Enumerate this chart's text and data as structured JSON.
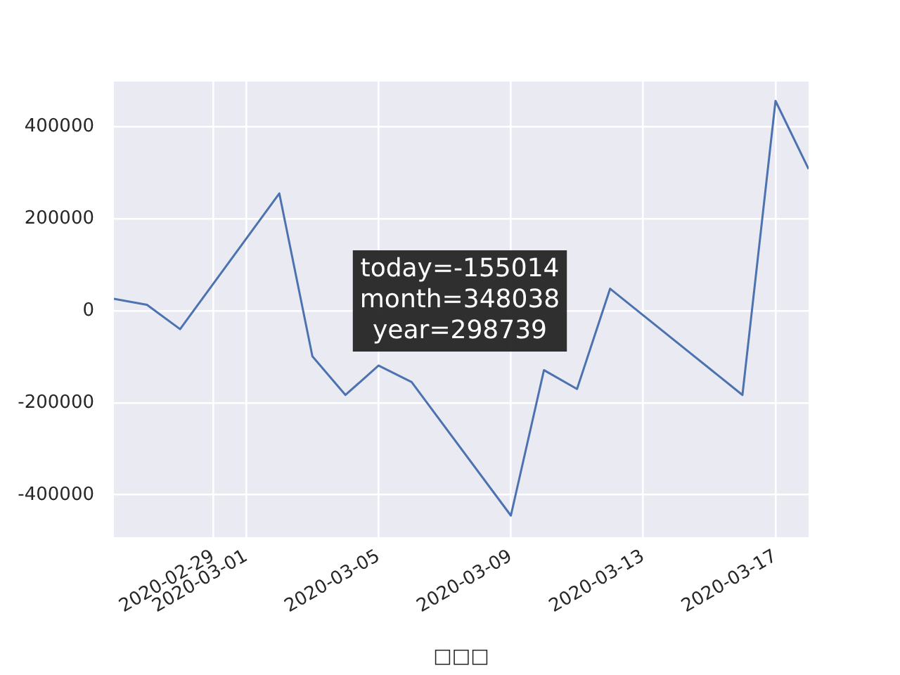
{
  "chart_data": {
    "type": "line",
    "xlabel": "□□□",
    "x": [
      "2020-02-26",
      "2020-02-27",
      "2020-02-28",
      "2020-03-02",
      "2020-03-03",
      "2020-03-04",
      "2020-03-05",
      "2020-03-06",
      "2020-03-09",
      "2020-03-10",
      "2020-03-11",
      "2020-03-12",
      "2020-03-16",
      "2020-03-17",
      "2020-03-18"
    ],
    "series": [
      {
        "color": "#4c72b0",
        "values": [
          26000,
          13000,
          -40000,
          255000,
          -99000,
          -183000,
          -119000,
          -155000,
          -445000,
          -129000,
          -170000,
          48000,
          -183000,
          456000,
          308000
        ]
      }
    ],
    "xlim": [
      "2020-02-26",
      "2020-03-18"
    ],
    "xticks": [
      "2020-02-29",
      "2020-03-01",
      "2020-03-05",
      "2020-03-09",
      "2020-03-13",
      "2020-03-17"
    ],
    "ylim": [
      -492000,
      498000
    ],
    "yticks": [
      -400000,
      -200000,
      0,
      200000,
      400000
    ],
    "annotations": [
      "today=-155014\nmonth=348038\nyear=298739"
    ],
    "grid": true,
    "legend": false
  }
}
